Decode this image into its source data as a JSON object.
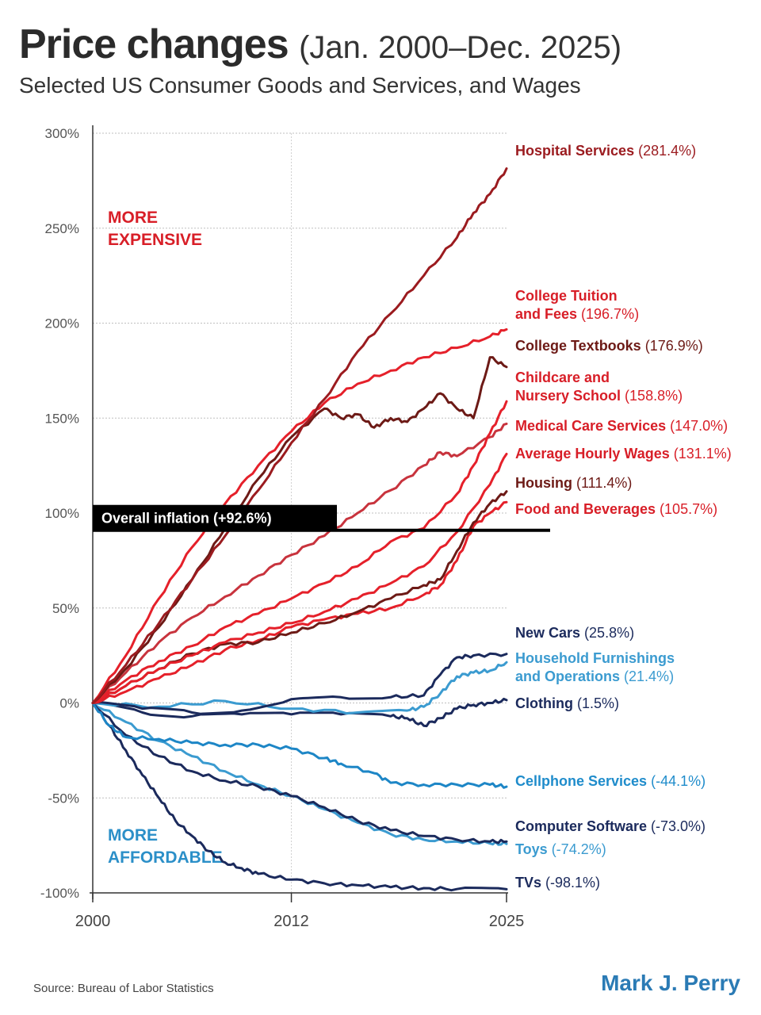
{
  "header": {
    "title_bold": "Price changes",
    "title_light": "(Jan. 2000–Dec. 2025)",
    "subtitle": "Selected US Consumer Goods and Services, and Wages"
  },
  "footer": {
    "source": "Source:  Bureau of Labor Statistics",
    "brand": "Mark J. Perry"
  },
  "chart_data": {
    "type": "line",
    "x_ticks": [
      "2000",
      "2012",
      "2025"
    ],
    "y_ticks": [
      "300%",
      "250%",
      "200%",
      "150%",
      "100%",
      "50%",
      "0%",
      "-50%",
      "-100%"
    ],
    "xlim": [
      2000,
      2025
    ],
    "ylim": [
      -100,
      300
    ],
    "grid": true,
    "annotations": {
      "more_expensive": [
        "MORE",
        "EXPENSIVE"
      ],
      "more_affordable": [
        "MORE",
        "AFFORDABLE"
      ],
      "inflation_label": "Overall inflation (+92.6%)",
      "inflation_value": 92.6
    },
    "colors": {
      "dark_red": "#9b1b1f",
      "red": "#e5202a",
      "maroon": "#6d1a16",
      "navy": "#1b2a5c",
      "light_blue": "#3b9bd0",
      "mid_blue": "#1d86c6"
    },
    "series": [
      {
        "name": "Hospital Services",
        "value_label": "(281.4%)",
        "color": "#9b1b1f",
        "points": [
          [
            2000,
            0
          ],
          [
            2002,
            20
          ],
          [
            2004,
            42
          ],
          [
            2006,
            65
          ],
          [
            2008,
            88
          ],
          [
            2010,
            112
          ],
          [
            2012,
            137
          ],
          [
            2014,
            160
          ],
          [
            2016,
            185
          ],
          [
            2018,
            205
          ],
          [
            2020,
            225
          ],
          [
            2022,
            245
          ],
          [
            2023,
            258
          ],
          [
            2024,
            268
          ],
          [
            2025,
            281.4
          ]
        ]
      },
      {
        "name": "College Tuition and Fees",
        "label_lines": [
          "College Tuition",
          "and Fees"
        ],
        "value_label": "(196.7%)",
        "color": "#e5202a",
        "points": [
          [
            2000,
            0
          ],
          [
            2002,
            25
          ],
          [
            2004,
            55
          ],
          [
            2006,
            82
          ],
          [
            2008,
            105
          ],
          [
            2010,
            125
          ],
          [
            2012,
            143
          ],
          [
            2014,
            158
          ],
          [
            2016,
            168
          ],
          [
            2018,
            175
          ],
          [
            2020,
            182
          ],
          [
            2022,
            187
          ],
          [
            2024,
            193
          ],
          [
            2025,
            196.7
          ]
        ]
      },
      {
        "name": "College Textbooks",
        "value_label": "(176.9%)",
        "color": "#6d1a16",
        "points": [
          [
            2000,
            0
          ],
          [
            2002,
            18
          ],
          [
            2004,
            40
          ],
          [
            2006,
            65
          ],
          [
            2008,
            92
          ],
          [
            2010,
            118
          ],
          [
            2012,
            140
          ],
          [
            2014,
            155
          ],
          [
            2015,
            150
          ],
          [
            2016,
            152
          ],
          [
            2017,
            145
          ],
          [
            2018,
            150
          ],
          [
            2019,
            148
          ],
          [
            2020,
            155
          ],
          [
            2021,
            163
          ],
          [
            2022,
            155
          ],
          [
            2023,
            150
          ],
          [
            2024,
            182
          ],
          [
            2025,
            176.9
          ]
        ]
      },
      {
        "name": "Childcare and Nursery School",
        "label_lines": [
          "Childcare and",
          "Nursery School"
        ],
        "value_label": "(158.8%)",
        "color": "#e5202a",
        "points": [
          [
            2000,
            0
          ],
          [
            2002,
            12
          ],
          [
            2004,
            22
          ],
          [
            2006,
            30
          ],
          [
            2008,
            40
          ],
          [
            2010,
            47
          ],
          [
            2012,
            55
          ],
          [
            2014,
            63
          ],
          [
            2016,
            72
          ],
          [
            2018,
            85
          ],
          [
            2020,
            92
          ],
          [
            2022,
            110
          ],
          [
            2023,
            125
          ],
          [
            2024,
            142
          ],
          [
            2025,
            158.8
          ]
        ]
      },
      {
        "name": "Medical Care Services",
        "value_label": "(147.0%)",
        "color": "#c8333d",
        "points": [
          [
            2000,
            0
          ],
          [
            2002,
            16
          ],
          [
            2004,
            32
          ],
          [
            2006,
            45
          ],
          [
            2008,
            56
          ],
          [
            2010,
            67
          ],
          [
            2012,
            78
          ],
          [
            2014,
            88
          ],
          [
            2016,
            100
          ],
          [
            2018,
            112
          ],
          [
            2020,
            125
          ],
          [
            2021,
            132
          ],
          [
            2022,
            130
          ],
          [
            2024,
            140
          ],
          [
            2025,
            147.0
          ]
        ]
      },
      {
        "name": "Average Hourly Wages",
        "value_label": "(131.1%)",
        "color": "#e5202a",
        "points": [
          [
            2000,
            0
          ],
          [
            2002,
            9
          ],
          [
            2004,
            18
          ],
          [
            2006,
            25
          ],
          [
            2008,
            32
          ],
          [
            2010,
            37
          ],
          [
            2012,
            42
          ],
          [
            2014,
            48
          ],
          [
            2016,
            55
          ],
          [
            2018,
            63
          ],
          [
            2020,
            72
          ],
          [
            2022,
            90
          ],
          [
            2024,
            115
          ],
          [
            2025,
            131.1
          ]
        ]
      },
      {
        "name": "Housing",
        "value_label": "(111.4%)",
        "color": "#6d1a16",
        "points": [
          [
            2000,
            0
          ],
          [
            2002,
            9
          ],
          [
            2004,
            18
          ],
          [
            2006,
            26
          ],
          [
            2008,
            31
          ],
          [
            2010,
            32
          ],
          [
            2012,
            37
          ],
          [
            2014,
            42
          ],
          [
            2016,
            48
          ],
          [
            2018,
            55
          ],
          [
            2020,
            62
          ],
          [
            2021,
            65
          ],
          [
            2022,
            80
          ],
          [
            2023,
            95
          ],
          [
            2024,
            105
          ],
          [
            2025,
            111.4
          ]
        ]
      },
      {
        "name": "Food and Beverages",
        "value_label": "(105.7%)",
        "color": "#e5202a",
        "points": [
          [
            2000,
            0
          ],
          [
            2002,
            6
          ],
          [
            2004,
            13
          ],
          [
            2006,
            20
          ],
          [
            2008,
            28
          ],
          [
            2010,
            33
          ],
          [
            2012,
            40
          ],
          [
            2014,
            44
          ],
          [
            2016,
            47
          ],
          [
            2018,
            50
          ],
          [
            2020,
            57
          ],
          [
            2021,
            62
          ],
          [
            2022,
            75
          ],
          [
            2023,
            93
          ],
          [
            2024,
            100
          ],
          [
            2025,
            105.7
          ]
        ]
      },
      {
        "name": "New Cars",
        "value_label": "(25.8%)",
        "color": "#1b2a5c",
        "points": [
          [
            2000,
            0
          ],
          [
            2003,
            -3
          ],
          [
            2006,
            -5
          ],
          [
            2009,
            -4
          ],
          [
            2012,
            2
          ],
          [
            2015,
            3
          ],
          [
            2018,
            3
          ],
          [
            2020,
            4
          ],
          [
            2021,
            15
          ],
          [
            2022,
            24
          ],
          [
            2023,
            25
          ],
          [
            2025,
            25.8
          ]
        ]
      },
      {
        "name": "Household Furnishings and Operations",
        "label_lines": [
          "Household Furnishings",
          "and Operations"
        ],
        "value_label": "(21.4%)",
        "color": "#3b9bd0",
        "points": [
          [
            2000,
            0
          ],
          [
            2004,
            -2
          ],
          [
            2008,
            1
          ],
          [
            2012,
            -3
          ],
          [
            2016,
            -5
          ],
          [
            2019,
            -4
          ],
          [
            2020,
            -2
          ],
          [
            2021,
            5
          ],
          [
            2022,
            14
          ],
          [
            2023,
            16
          ],
          [
            2024,
            17
          ],
          [
            2025,
            21.4
          ]
        ]
      },
      {
        "name": "Clothing",
        "value_label": "(1.5%)",
        "color": "#1b2a5c",
        "points": [
          [
            2000,
            0
          ],
          [
            2003,
            -5
          ],
          [
            2006,
            -7
          ],
          [
            2009,
            -6
          ],
          [
            2012,
            -6
          ],
          [
            2015,
            -6
          ],
          [
            2018,
            -7
          ],
          [
            2019,
            -8
          ],
          [
            2020,
            -12
          ],
          [
            2021,
            -8
          ],
          [
            2022,
            -3
          ],
          [
            2023,
            -1
          ],
          [
            2024,
            0
          ],
          [
            2025,
            1.5
          ]
        ]
      },
      {
        "name": "Cellphone Services",
        "value_label": "(-44.1%)",
        "color": "#1d86c6",
        "points": [
          [
            2000,
            0
          ],
          [
            2001,
            -12
          ],
          [
            2002,
            -18
          ],
          [
            2004,
            -19
          ],
          [
            2006,
            -21
          ],
          [
            2008,
            -22
          ],
          [
            2010,
            -22
          ],
          [
            2012,
            -24
          ],
          [
            2014,
            -29
          ],
          [
            2015,
            -32
          ],
          [
            2017,
            -37
          ],
          [
            2018,
            -42
          ],
          [
            2020,
            -43
          ],
          [
            2022,
            -43
          ],
          [
            2024,
            -43
          ],
          [
            2025,
            -44.1
          ]
        ]
      },
      {
        "name": "Computer Software",
        "value_label": "(-73.0%)",
        "color": "#1b2a5c",
        "points": [
          [
            2000,
            0
          ],
          [
            2002,
            -17
          ],
          [
            2004,
            -28
          ],
          [
            2006,
            -36
          ],
          [
            2008,
            -41
          ],
          [
            2010,
            -44
          ],
          [
            2012,
            -49
          ],
          [
            2014,
            -55
          ],
          [
            2016,
            -62
          ],
          [
            2018,
            -67
          ],
          [
            2020,
            -70
          ],
          [
            2022,
            -72
          ],
          [
            2024,
            -73
          ],
          [
            2025,
            -73.0
          ]
        ]
      },
      {
        "name": "Toys",
        "value_label": "(-74.2%)",
        "color": "#3b9bd0",
        "points": [
          [
            2000,
            0
          ],
          [
            2002,
            -10
          ],
          [
            2004,
            -20
          ],
          [
            2006,
            -28
          ],
          [
            2008,
            -36
          ],
          [
            2010,
            -43
          ],
          [
            2012,
            -49
          ],
          [
            2014,
            -56
          ],
          [
            2016,
            -63
          ],
          [
            2018,
            -69
          ],
          [
            2020,
            -72
          ],
          [
            2022,
            -73
          ],
          [
            2024,
            -74
          ],
          [
            2025,
            -74.2
          ]
        ]
      },
      {
        "name": "TVs",
        "value_label": "(-98.1%)",
        "color": "#1b2a5c",
        "points": [
          [
            2000,
            0
          ],
          [
            2001,
            -12
          ],
          [
            2002,
            -25
          ],
          [
            2003,
            -38
          ],
          [
            2004,
            -50
          ],
          [
            2005,
            -62
          ],
          [
            2006,
            -70
          ],
          [
            2007,
            -78
          ],
          [
            2008,
            -84
          ],
          [
            2009,
            -87
          ],
          [
            2010,
            -90
          ],
          [
            2012,
            -93
          ],
          [
            2014,
            -95
          ],
          [
            2016,
            -96
          ],
          [
            2018,
            -97
          ],
          [
            2020,
            -97.5
          ],
          [
            2022,
            -98
          ],
          [
            2025,
            -98.1
          ]
        ]
      }
    ]
  }
}
